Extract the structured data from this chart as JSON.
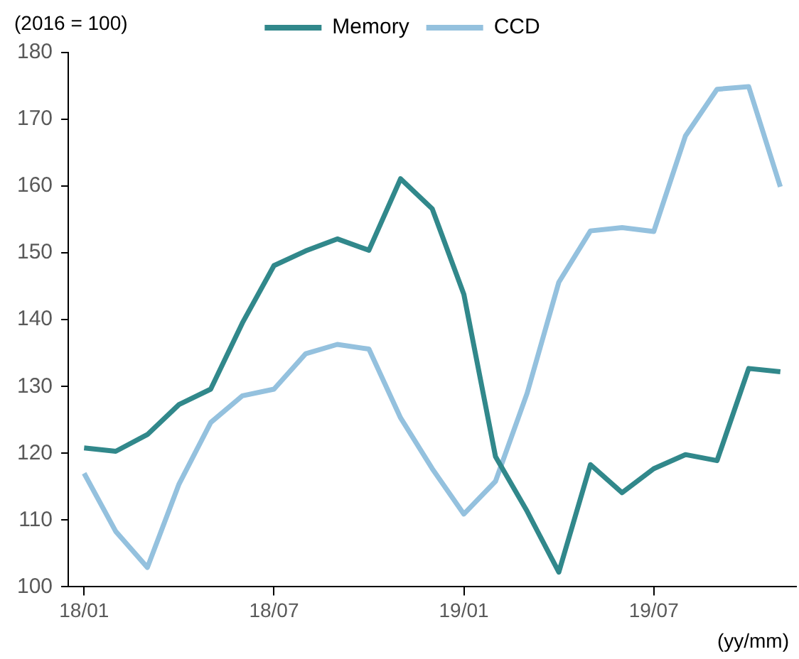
{
  "chart_data": {
    "type": "line",
    "ylabel": "(2016 = 100)",
    "xlabel": "(yy/mm)",
    "categories": [
      "18/01",
      null,
      null,
      null,
      null,
      null,
      "18/07",
      null,
      null,
      null,
      null,
      null,
      "19/01",
      null,
      null,
      null,
      null,
      null,
      "19/07",
      null,
      null,
      null,
      null
    ],
    "series": [
      {
        "name": "Memory",
        "color": "#31888b",
        "values": [
          120.8,
          120.3,
          122.8,
          127.3,
          129.6,
          139.5,
          148.1,
          150.3,
          152.1,
          150.4,
          161.1,
          156.6,
          143.8,
          119.5,
          111.3,
          102.2,
          118.3,
          114.1,
          117.7,
          119.8,
          118.9,
          132.7,
          132.2
        ]
      },
      {
        "name": "CCD",
        "color": "#94c1de",
        "values": [
          117,
          108.3,
          102.9,
          115.4,
          124.6,
          128.6,
          129.6,
          134.9,
          136.3,
          135.6,
          125.3,
          117.7,
          110.9,
          115.8,
          129,
          145.6,
          153.3,
          153.8,
          153.2,
          167.5,
          174.5,
          174.9,
          159.9
        ]
      }
    ],
    "ylim": [
      100,
      180
    ],
    "yticks": [
      100,
      110,
      120,
      130,
      140,
      150,
      160,
      170,
      180
    ],
    "grid": false,
    "legend": "top",
    "marker": "none",
    "line_style": "solid"
  }
}
